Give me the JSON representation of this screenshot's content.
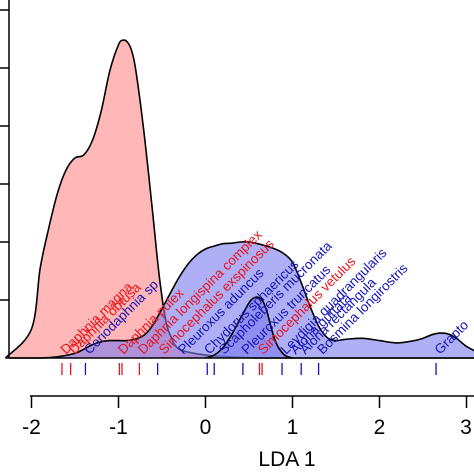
{
  "chart_data": {
    "type": "area",
    "xlabel": "LDA 1",
    "xlim": [
      -2.3,
      3.15
    ],
    "ylim": [
      0,
      0.62
    ],
    "x_ticks": [
      -2,
      -1,
      0,
      1,
      2,
      3
    ],
    "x_tick_labels": [
      "-2",
      "-1",
      "0",
      "1",
      "2",
      "3"
    ],
    "y_ticks": [
      0.1,
      0.2,
      0.3,
      0.4,
      0.5,
      0.6
    ],
    "colors": {
      "red_fill": "#ff9999",
      "red_fill_opacity": 0.7,
      "blue_fill": "#7a7af0",
      "blue_fill_opacity": 0.6,
      "red_text": "#e8141c",
      "blue_text": "#1414b8",
      "outline": "#000000"
    },
    "series": [
      {
        "color": "#ff9999",
        "x": [
          -2.3,
          -2.0,
          -1.9,
          -1.8,
          -1.7,
          -1.6,
          -1.5,
          -1.4,
          -1.3,
          -1.2,
          -1.1,
          -1.0,
          -0.95,
          -0.9,
          -0.85,
          -0.8,
          -0.7,
          -0.6,
          -0.55,
          -0.5,
          -0.45,
          -0.4,
          -0.3,
          0.0,
          0.3,
          0.6,
          1.0,
          1.5,
          2.0,
          2.5,
          3.15
        ],
        "y": [
          0.0,
          0.05,
          0.155,
          0.225,
          0.285,
          0.325,
          0.345,
          0.35,
          0.375,
          0.425,
          0.495,
          0.54,
          0.548,
          0.545,
          0.53,
          0.495,
          0.38,
          0.24,
          0.165,
          0.105,
          0.06,
          0.038,
          0.015,
          0.005,
          0.002,
          0.0,
          0.0,
          0.0,
          0.0,
          0.0,
          0.0
        ]
      },
      {
        "color": "#7a7af0",
        "x": [
          -2.3,
          -1.9,
          -1.7,
          -1.5,
          -1.4,
          -1.3,
          -1.2,
          -1.1,
          -1.0,
          -0.9,
          -0.8,
          -0.7,
          -0.6,
          -0.5,
          -0.4,
          -0.3,
          -0.2,
          -0.1,
          0.0,
          0.1,
          0.2,
          0.3,
          0.4,
          0.5,
          0.6,
          0.7,
          0.8,
          0.9,
          1.0,
          1.1,
          1.2,
          1.3,
          1.4,
          1.5,
          1.6,
          1.8,
          2.0,
          2.2,
          2.4,
          2.5,
          2.6,
          2.7,
          2.8,
          2.9,
          3.0,
          3.15
        ],
        "y": [
          0.0,
          0.0,
          0.002,
          0.008,
          0.015,
          0.023,
          0.028,
          0.03,
          0.03,
          0.03,
          0.033,
          0.04,
          0.058,
          0.085,
          0.113,
          0.14,
          0.162,
          0.178,
          0.188,
          0.193,
          0.197,
          0.198,
          0.2,
          0.2,
          0.197,
          0.193,
          0.188,
          0.18,
          0.165,
          0.13,
          0.09,
          0.055,
          0.035,
          0.03,
          0.032,
          0.034,
          0.03,
          0.026,
          0.03,
          0.034,
          0.04,
          0.043,
          0.041,
          0.032,
          0.02,
          0.008
        ]
      },
      {
        "color": "#7a7af0",
        "x": [
          0.0,
          0.1,
          0.2,
          0.3,
          0.4,
          0.5,
          0.55,
          0.6,
          0.65,
          0.7,
          0.8,
          0.9,
          1.0
        ],
        "y": [
          0.0,
          0.005,
          0.018,
          0.04,
          0.068,
          0.095,
          0.103,
          0.105,
          0.1,
          0.083,
          0.03,
          0.006,
          0.0
        ]
      }
    ],
    "rug": [
      {
        "x": -1.65,
        "color": "red"
      },
      {
        "x": -1.55,
        "color": "red"
      },
      {
        "x": -1.38,
        "color": "blue"
      },
      {
        "x": -0.99,
        "color": "red"
      },
      {
        "x": -0.96,
        "color": "red"
      },
      {
        "x": -0.76,
        "color": "red"
      },
      {
        "x": -0.55,
        "color": "blue"
      },
      {
        "x": 0.02,
        "color": "blue"
      },
      {
        "x": 0.1,
        "color": "blue"
      },
      {
        "x": 0.43,
        "color": "blue"
      },
      {
        "x": 0.62,
        "color": "red"
      },
      {
        "x": 0.65,
        "color": "red"
      },
      {
        "x": 0.88,
        "color": "blue"
      },
      {
        "x": 1.1,
        "color": "blue"
      },
      {
        "x": 1.3,
        "color": "blue"
      },
      {
        "x": 2.65,
        "color": "blue"
      }
    ],
    "annotations": [
      {
        "text": "Daphnia magna",
        "x": -1.65,
        "color": "red"
      },
      {
        "text": "Daphnia obtusa",
        "x": -1.55,
        "color": "red"
      },
      {
        "text": "Ceriodaphnia sp.",
        "x": -1.38,
        "color": "blue"
      },
      {
        "text": "Daphnia pulex",
        "x": -0.99,
        "color": "red"
      },
      {
        "text": "Daphnia longispina complex",
        "x": -0.76,
        "color": "red"
      },
      {
        "text": "Simocephalus exspinosus",
        "x": -0.52,
        "color": "red"
      },
      {
        "text": "Pleuroxus aduncus",
        "x": -0.3,
        "color": "blue"
      },
      {
        "text": "Chydorus sphaericus",
        "x": 0.0,
        "color": "blue"
      },
      {
        "text": "Scapholeberis mucronata",
        "x": 0.17,
        "color": "blue"
      },
      {
        "text": "Pleuroxus truncatus",
        "x": 0.43,
        "color": "blue"
      },
      {
        "text": "Simocephalus vetulus",
        "x": 0.62,
        "color": "red"
      },
      {
        "text": "Leydigia quadrangularis",
        "x": 0.88,
        "color": "blue"
      },
      {
        "text": "Alona guttata",
        "x": 0.99,
        "color": "blue"
      },
      {
        "text": "Alona rectangula",
        "x": 1.1,
        "color": "blue"
      },
      {
        "text": "Bosmina longirostris",
        "x": 1.3,
        "color": "blue"
      },
      {
        "text": "Grapto",
        "x": 2.65,
        "color": "blue"
      }
    ]
  }
}
